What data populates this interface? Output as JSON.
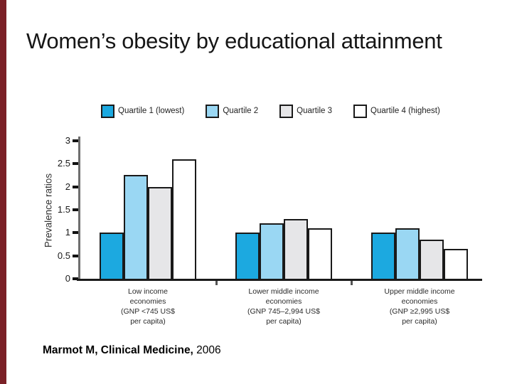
{
  "slide": {
    "title": "Women’s obesity by educational attainment",
    "accent_color": "#7b2127",
    "citation_main": "Marmot M, Clinical Medicine,",
    "citation_year": " 2006"
  },
  "chart_data": {
    "type": "bar",
    "title": "",
    "xlabel": "",
    "ylabel": "Prevalence ratios",
    "ylim": [
      0,
      3
    ],
    "yticks": [
      0,
      0.5,
      1,
      1.5,
      2,
      2.5,
      3
    ],
    "grid": "off",
    "legend_position": "top",
    "categories": [
      {
        "lines": [
          "Low income",
          "economies",
          "(GNP <745 US$",
          "per capita)"
        ]
      },
      {
        "lines": [
          "Lower middle income",
          "economies",
          "(GNP 745–2,994 US$",
          "per capita)"
        ]
      },
      {
        "lines": [
          "Upper middle income",
          "economies",
          "(GNP ≥2,995 US$",
          "per capita)"
        ]
      }
    ],
    "series": [
      {
        "name": "Quartile 1 (lowest)",
        "color": "#1ca9e0",
        "values": [
          1.0,
          1.0,
          1.0
        ]
      },
      {
        "name": "Quartile 2",
        "color": "#9ad7f3",
        "values": [
          2.25,
          1.2,
          1.1
        ]
      },
      {
        "name": "Quartile 3",
        "color": "#e6e6e8",
        "values": [
          2.0,
          1.3,
          0.85
        ]
      },
      {
        "name": "Quartile 4 (highest)",
        "color": "#ffffff",
        "values": [
          2.6,
          1.1,
          0.65
        ]
      }
    ]
  }
}
